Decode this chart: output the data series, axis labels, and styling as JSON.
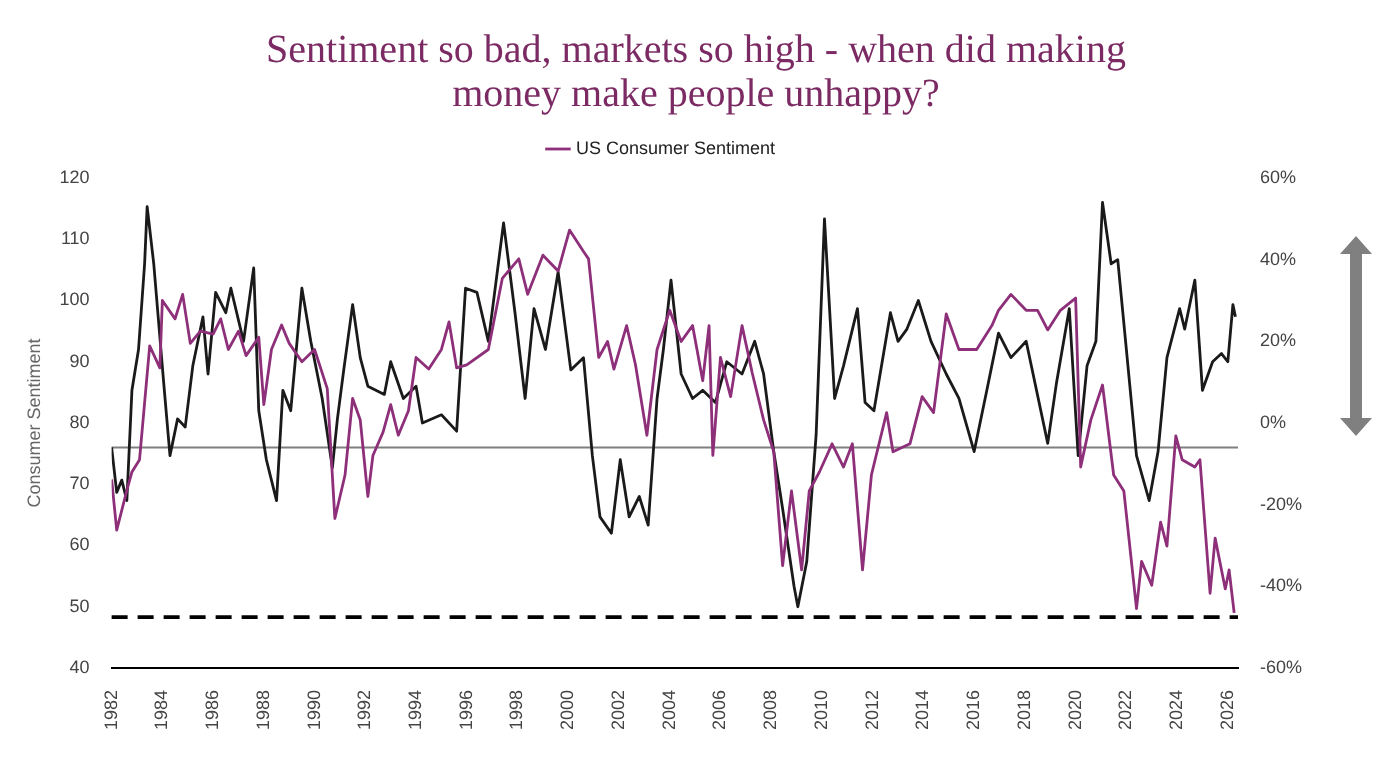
{
  "chart_data": {
    "type": "line",
    "title": "Sentiment so bad, markets so high - when did making money make people unhappy?",
    "ylabel": "Consumer Sentiment",
    "legend": "top",
    "marker": "none",
    "grid": false,
    "xlim": [
      1982,
      2026.4
    ],
    "xticks": [
      1982,
      1984,
      1986,
      1988,
      1990,
      1992,
      1994,
      1996,
      1998,
      2000,
      2002,
      2004,
      2006,
      2008,
      2010,
      2012,
      2014,
      2016,
      2018,
      2020,
      2022,
      2024,
      2026
    ],
    "ylim": [
      40,
      120
    ],
    "yticks": [
      40,
      50,
      60,
      70,
      80,
      90,
      100,
      110,
      120
    ],
    "y2lim": [
      -60,
      60
    ],
    "y2ticks": [
      {
        "value": -60,
        "label": "-60%"
      },
      {
        "value": -40,
        "label": "-40%"
      },
      {
        "value": -20,
        "label": "-20%"
      },
      {
        "value": 0,
        "label": "0%"
      },
      {
        "value": 20,
        "label": "20%"
      },
      {
        "value": 40,
        "label": "40%"
      },
      {
        "value": 60,
        "label": "60%"
      }
    ],
    "ref_lines": [
      {
        "axis": "y",
        "value": 76,
        "color": "#7f7f7f",
        "line_style": "solid"
      },
      {
        "axis": "y",
        "value": 48.3,
        "color": "#000000",
        "line_style": "dashed"
      }
    ],
    "series": [
      {
        "name": "US Consumer Sentiment",
        "color": "#8e2f7a",
        "x": [
          1982,
          1982.2,
          1982.6,
          1982.8,
          1983.1,
          1983.5,
          1983.9,
          1984,
          1984.5,
          1984.8,
          1985.1,
          1985.5,
          1986,
          1986.3,
          1986.6,
          1987,
          1987.3,
          1987.8,
          1988,
          1988.3,
          1988.7,
          1989,
          1989.5,
          1990,
          1990.5,
          1990.8,
          1991.2,
          1991.5,
          1991.8,
          1992.1,
          1992.3,
          1992.7,
          1993,
          1993.3,
          1993.7,
          1994,
          1994.5,
          1995,
          1995.3,
          1995.6,
          1996,
          1996.85,
          1997.4,
          1998.05,
          1998.4,
          1999,
          1999.6,
          2000.05,
          2000.6,
          2000.8,
          2001.2,
          2001.55,
          2001.8,
          2002.3,
          2002.65,
          2003.1,
          2003.5,
          2004,
          2004.45,
          2004.9,
          2005.3,
          2005.55,
          2005.7,
          2006,
          2006.4,
          2006.85,
          2007.25,
          2007.7,
          2008.1,
          2008.45,
          2008.8,
          2009.2,
          2009.5,
          2009.9,
          2010.4,
          2010.85,
          2011.2,
          2011.6,
          2011.95,
          2012.55,
          2012.8,
          2013.47,
          2013.95,
          2014.4,
          2014.9,
          2015.4,
          2016.1,
          2016.7,
          2016.96,
          2017.45,
          2018.05,
          2018.5,
          2018.9,
          2019.4,
          2020,
          2020.2,
          2020.6,
          2021.06,
          2021.5,
          2021.9,
          2022.4,
          2022.6,
          2023,
          2023.35,
          2023.6,
          2023.95,
          2024.2,
          2024.7,
          2024.9,
          2025.3,
          2025.5,
          2025.9,
          2026.05,
          2026.25
        ],
        "values": [
          70.8,
          62.5,
          69,
          72,
          74,
          92.6,
          89,
          100,
          97,
          101,
          93,
          95,
          94.5,
          97,
          92,
          95,
          91,
          94,
          83,
          92,
          96,
          93,
          90,
          92,
          85.6,
          64.4,
          71.5,
          84,
          80.5,
          68,
          74.7,
          78.5,
          83,
          78,
          82,
          90.7,
          88.8,
          92,
          96.5,
          89,
          89.5,
          92,
          103.6,
          106.8,
          101,
          107.4,
          104.8,
          111.5,
          108,
          106.8,
          90.7,
          93.3,
          88.8,
          95.9,
          89.5,
          78,
          92,
          98.4,
          93.3,
          95.9,
          86.9,
          95.9,
          74.7,
          90.7,
          84.3,
          95.9,
          88.2,
          80.5,
          75.3,
          56.7,
          68.9,
          56,
          68.9,
          72,
          76.6,
          72.8,
          76.6,
          56,
          71.5,
          81.7,
          75.3,
          76.6,
          84.3,
          81.7,
          97.8,
          92,
          92,
          95.9,
          98.4,
          101,
          98.4,
          98.4,
          95.2,
          98.4,
          100.4,
          72.8,
          80.5,
          86.2,
          71.5,
          68.9,
          49.7,
          57.4,
          53.5,
          63.8,
          59.9,
          77.9,
          74,
          72.8,
          74,
          52.2,
          61.2,
          52.9,
          56,
          49
        ]
      },
      {
        "color": "#1a1a1a",
        "axis": "y2",
        "x": [
          1982,
          1982.2,
          1982.4,
          1982.6,
          1982.8,
          1983.06,
          1983.3,
          1983.4,
          1983.66,
          1984.05,
          1984.3,
          1984.6,
          1984.9,
          1985.2,
          1985.6,
          1985.8,
          1986.1,
          1986.5,
          1986.7,
          1987.2,
          1987.6,
          1987.8,
          1988.1,
          1988.5,
          1988.75,
          1989.06,
          1989.5,
          1989.85,
          1990.3,
          1990.7,
          1990.9,
          1991.15,
          1991.5,
          1991.8,
          1992.1,
          1992.75,
          1993,
          1993.5,
          1994,
          1994.25,
          1995,
          1995.6,
          1995.95,
          1996.4,
          1996.85,
          1997.45,
          1997.9,
          1998.3,
          1998.65,
          1999.1,
          1999.6,
          2000.1,
          2000.6,
          2000.95,
          2001.25,
          2001.7,
          2002.05,
          2002.4,
          2002.8,
          2003.15,
          2003.5,
          2003.75,
          2004.05,
          2004.45,
          2004.9,
          2005.3,
          2005.8,
          2006.25,
          2006.85,
          2007.35,
          2007.7,
          2008.1,
          2008.45,
          2008.9,
          2009.05,
          2009.4,
          2009.77,
          2010.1,
          2010.5,
          2010.85,
          2011.4,
          2011.7,
          2012.05,
          2012.7,
          2013.0,
          2013.35,
          2013.8,
          2014.3,
          2014.9,
          2015.4,
          2016,
          2016.5,
          2016.96,
          2017.45,
          2018.05,
          2018.9,
          2019.25,
          2019.75,
          2020.1,
          2020.45,
          2020.8,
          2021.06,
          2021.4,
          2021.66,
          2022,
          2022.4,
          2022.9,
          2023.25,
          2023.6,
          2024.1,
          2024.3,
          2024.7,
          2025,
          2025.4,
          2025.75,
          2026,
          2026.2,
          2026.3
        ],
        "values": [
          -6,
          -17,
          -14,
          -19,
          8,
          18,
          39,
          53,
          39,
          10,
          -8,
          1,
          -1,
          14,
          26,
          12,
          32,
          27,
          33,
          20,
          38,
          3,
          -9,
          -19,
          8,
          3,
          33,
          20,
          6,
          -11,
          1,
          13,
          29,
          16,
          9,
          7,
          15,
          6,
          9,
          0,
          2,
          -2,
          33,
          32,
          20,
          49,
          27,
          6,
          28,
          18,
          37,
          13,
          16,
          -8,
          -23,
          -27,
          -9,
          -23,
          -18,
          -25,
          6,
          18,
          35,
          12,
          6,
          8,
          5,
          15,
          12,
          20,
          12,
          -7,
          -21,
          -40,
          -45,
          -34,
          -3,
          50,
          6,
          14,
          28,
          5,
          3,
          27,
          20,
          23,
          30,
          20,
          12,
          6,
          -7,
          8,
          22,
          16,
          20,
          -5,
          10,
          28,
          -8,
          14,
          20,
          54,
          39,
          40,
          18,
          -8,
          -19,
          -7,
          16,
          28,
          23,
          35,
          8,
          15,
          17,
          15,
          29,
          26
        ]
      }
    ]
  }
}
